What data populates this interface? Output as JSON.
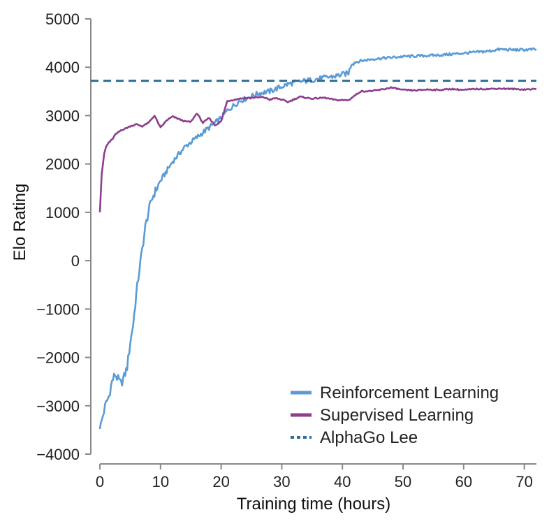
{
  "chart_data": {
    "type": "line",
    "xlabel": "Training time (hours)",
    "ylabel": "Elo Rating",
    "xlim": [
      -1.5,
      72
    ],
    "ylim": [
      -4000,
      5000
    ],
    "x_ticks": [
      0,
      10,
      20,
      30,
      40,
      50,
      60,
      70
    ],
    "y_ticks": [
      -4000,
      -3000,
      -2000,
      -1000,
      0,
      1000,
      2000,
      3000,
      4000,
      5000
    ],
    "y_tick_labels": [
      "−4000",
      "−3000",
      "−2000",
      "−1000",
      "0",
      "1000",
      "2000",
      "3000",
      "4000",
      "5000"
    ],
    "grid": false,
    "legend_position": "bottom-right",
    "series": [
      {
        "name": "Reinforcement Learning",
        "color": "#5b9bd5",
        "style": "solid",
        "points": [
          [
            0,
            -3480
          ],
          [
            0.5,
            -3200
          ],
          [
            1,
            -2950
          ],
          [
            1.5,
            -2800
          ],
          [
            2,
            -2500
          ],
          [
            2.5,
            -2350
          ],
          [
            3,
            -2450
          ],
          [
            3.5,
            -2550
          ],
          [
            4,
            -2400
          ],
          [
            4.5,
            -2200
          ],
          [
            5,
            -1700
          ],
          [
            5.5,
            -1300
          ],
          [
            6,
            -700
          ],
          [
            6.5,
            -200
          ],
          [
            7,
            250
          ],
          [
            7.5,
            700
          ],
          [
            8,
            1000
          ],
          [
            8.5,
            1250
          ],
          [
            9,
            1400
          ],
          [
            10,
            1650
          ],
          [
            11,
            1850
          ],
          [
            12,
            2050
          ],
          [
            13,
            2200
          ],
          [
            14,
            2350
          ],
          [
            15,
            2450
          ],
          [
            16,
            2550
          ],
          [
            17,
            2650
          ],
          [
            18,
            2750
          ],
          [
            19,
            2850
          ],
          [
            20,
            2950
          ],
          [
            21,
            3100
          ],
          [
            22,
            3200
          ],
          [
            23,
            3300
          ],
          [
            24,
            3350
          ],
          [
            25,
            3400
          ],
          [
            26,
            3450
          ],
          [
            27,
            3480
          ],
          [
            28,
            3500
          ],
          [
            29,
            3550
          ],
          [
            30,
            3600
          ],
          [
            31,
            3650
          ],
          [
            32,
            3680
          ],
          [
            33,
            3700
          ],
          [
            34,
            3720
          ],
          [
            35,
            3740
          ],
          [
            36,
            3760
          ],
          [
            37,
            3780
          ],
          [
            38,
            3800
          ],
          [
            39,
            3820
          ],
          [
            40,
            3850
          ],
          [
            41,
            3880
          ],
          [
            41.5,
            4080
          ],
          [
            42,
            4100
          ],
          [
            43,
            4130
          ],
          [
            44,
            4150
          ],
          [
            45,
            4170
          ],
          [
            46,
            4180
          ],
          [
            47,
            4190
          ],
          [
            48,
            4200
          ],
          [
            50,
            4220
          ],
          [
            52,
            4230
          ],
          [
            54,
            4240
          ],
          [
            56,
            4250
          ],
          [
            58,
            4270
          ],
          [
            60,
            4290
          ],
          [
            62,
            4310
          ],
          [
            64,
            4330
          ],
          [
            66,
            4370
          ],
          [
            68,
            4360
          ],
          [
            70,
            4360
          ],
          [
            72,
            4370
          ]
        ]
      },
      {
        "name": "Supervised Learning",
        "color": "#8e3e8e",
        "style": "solid",
        "points": [
          [
            0,
            1000
          ],
          [
            0.3,
            1800
          ],
          [
            0.7,
            2200
          ],
          [
            1,
            2350
          ],
          [
            1.5,
            2450
          ],
          [
            2,
            2500
          ],
          [
            2.5,
            2600
          ],
          [
            3,
            2650
          ],
          [
            3.5,
            2700
          ],
          [
            4,
            2720
          ],
          [
            5,
            2780
          ],
          [
            6,
            2820
          ],
          [
            7,
            2780
          ],
          [
            8,
            2850
          ],
          [
            9,
            3000
          ],
          [
            10,
            2750
          ],
          [
            11,
            2900
          ],
          [
            12,
            2980
          ],
          [
            14,
            2880
          ],
          [
            15,
            2870
          ],
          [
            16,
            3050
          ],
          [
            17,
            2850
          ],
          [
            18,
            2950
          ],
          [
            19,
            2800
          ],
          [
            20,
            2880
          ],
          [
            21,
            3300
          ],
          [
            23,
            3350
          ],
          [
            25,
            3370
          ],
          [
            27,
            3380
          ],
          [
            28,
            3330
          ],
          [
            29,
            3360
          ],
          [
            30,
            3330
          ],
          [
            31,
            3280
          ],
          [
            33,
            3390
          ],
          [
            35,
            3350
          ],
          [
            37,
            3370
          ],
          [
            39,
            3320
          ],
          [
            41,
            3320
          ],
          [
            43,
            3500
          ],
          [
            45,
            3510
          ],
          [
            47,
            3550
          ],
          [
            48,
            3580
          ],
          [
            50,
            3530
          ],
          [
            52,
            3520
          ],
          [
            54,
            3540
          ],
          [
            56,
            3530
          ],
          [
            58,
            3550
          ],
          [
            60,
            3530
          ],
          [
            62,
            3550
          ],
          [
            64,
            3550
          ],
          [
            66,
            3560
          ],
          [
            68,
            3550
          ],
          [
            70,
            3540
          ],
          [
            72,
            3550
          ]
        ]
      },
      {
        "name": "AlphaGo Lee",
        "color": "#2e6f96",
        "style": "dashed",
        "points": [
          [
            -1.5,
            3720
          ],
          [
            72,
            3720
          ]
        ]
      }
    ]
  }
}
